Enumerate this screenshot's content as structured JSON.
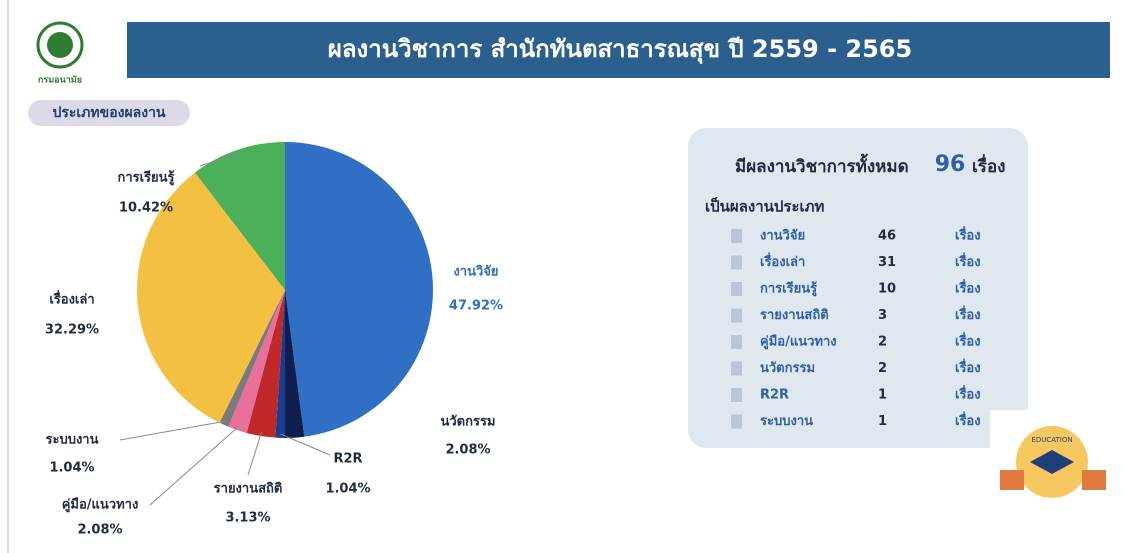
{
  "header": {
    "logo_text": "กรมอนามัย",
    "title": "ผลงานวิชาการ สำนักทันตสาธารณสุข ปี 2559 - 2565"
  },
  "badge": "ประเภทของผลงาน",
  "chart_data": {
    "type": "pie",
    "categories": [
      "งานวิจัย",
      "นวัตกรรม",
      "R2R",
      "รายงานสถิติ",
      "คู่มือ/แนวทาง",
      "ระบบงาน",
      "เรื่องเล่า",
      "การเรียนรู้"
    ],
    "values": [
      47.92,
      2.08,
      1.04,
      3.13,
      2.08,
      1.04,
      32.29,
      10.42
    ],
    "value_labels": [
      "47.92%",
      "2.08%",
      "1.04%",
      "3.13%",
      "2.08%",
      "1.04%",
      "32.29%",
      "10.42%"
    ],
    "colors": [
      "#2f6fc4",
      "#0d1f4f",
      "#1c3d8f",
      "#c0282a",
      "#e8709a",
      "#7a7a7a",
      "#f4c042",
      "#4caf5a"
    ]
  },
  "summary": {
    "title_prefix": "มีผลงานวิชาการทั้งหมด",
    "total": 96,
    "title_unit": "เรื่อง",
    "subtitle": "เป็นผลงานประเภท",
    "rows": [
      [
        "งานวิจัย",
        46,
        "เรื่อง"
      ],
      [
        "เรื่องเล่า",
        31,
        "เรื่อง"
      ],
      [
        "การเรียนรู้",
        10,
        "เรื่อง"
      ],
      [
        "รายงานสถิติ",
        3,
        "เรื่อง"
      ],
      [
        "คู่มือ/แนวทาง",
        2,
        "เรื่อง"
      ],
      [
        "นวัตกรรม",
        2,
        "เรื่อง"
      ],
      [
        "R2R",
        1,
        "เรื่อง"
      ],
      [
        "ระบบงาน",
        1,
        "เรื่อง"
      ]
    ]
  },
  "icon_text": "EDUCATION"
}
